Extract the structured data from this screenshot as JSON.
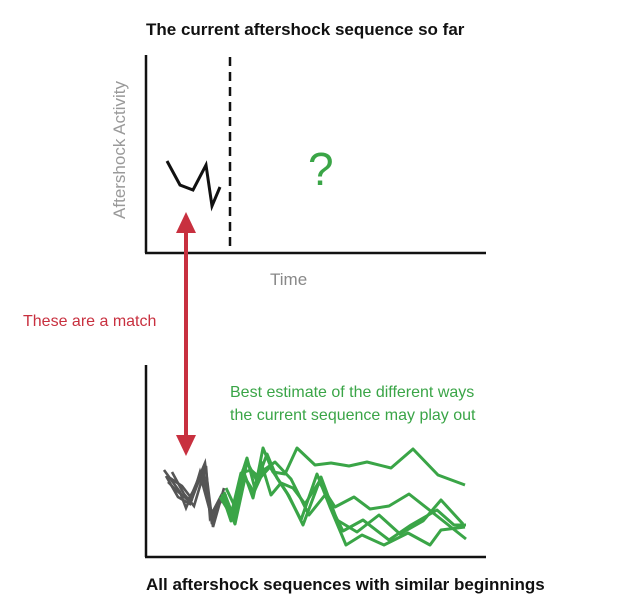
{
  "titles": {
    "top": "The current aftershock sequence so far",
    "bottom": "All aftershock sequences with similar beginnings"
  },
  "axes": {
    "y_label": "Aftershock Activity",
    "x_label": "Time"
  },
  "annotations": {
    "unknown_future": "?",
    "match_label": "These are a match",
    "estimate_line1": "Best estimate of the different ways",
    "estimate_line2": "the current sequence may play out"
  },
  "colors": {
    "axis": "#111111",
    "current_sequence": "#111111",
    "arrow": "#c8303f",
    "estimate": "#3aa547",
    "similar_beginnings": "#555555",
    "axis_label": "#999999"
  }
}
